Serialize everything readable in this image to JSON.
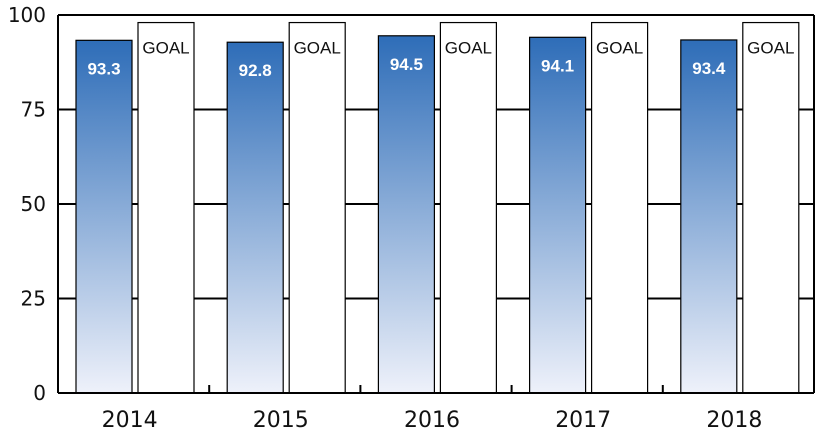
{
  "chart_data": {
    "type": "bar",
    "title": "",
    "xlabel": "",
    "ylabel": "",
    "ylim": [
      0,
      100
    ],
    "yticks": [
      "0",
      "25",
      "50",
      "75",
      "100"
    ],
    "categories": [
      "2014",
      "2015",
      "2016",
      "2017",
      "2018"
    ],
    "series": [
      {
        "values": [
          93.3,
          92.8,
          94.5,
          94.1,
          93.4
        ],
        "labels": [
          "93.3",
          "92.8",
          "94.5",
          "94.1",
          "93.4"
        ]
      },
      {
        "name": "GOAL",
        "values": [
          98,
          98,
          98,
          98,
          98
        ]
      }
    ],
    "grid": "horizontal",
    "colors": {
      "bar_top": "#2e6db8",
      "bar_bottom": "#eef1fa",
      "goal_fill": "#ffffff",
      "axis": "#000000"
    }
  }
}
